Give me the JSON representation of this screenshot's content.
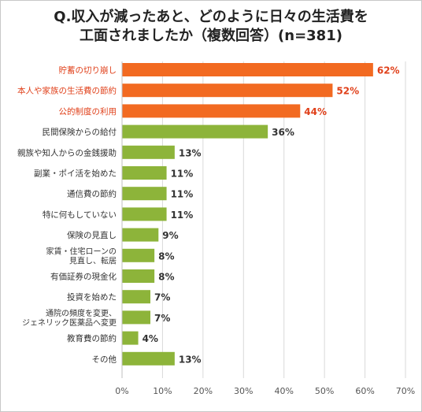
{
  "chart_data": {
    "type": "bar",
    "orientation": "horizontal",
    "title_line1": "Q.収入が減ったあと、どのように日々の生活費を",
    "title_line2": "工面されましたか（複数回答）(n=381)",
    "categories": [
      [
        "貯蓄の切り崩し"
      ],
      [
        "本人や家族の生活費の節約"
      ],
      [
        "公的制度の利用"
      ],
      [
        "民間保険からの給付"
      ],
      [
        "親族や知人からの金銭援助"
      ],
      [
        "副業・ポイ活を始めた"
      ],
      [
        "通信費の節約"
      ],
      [
        "特に何もしていない"
      ],
      [
        "保険の見直し"
      ],
      [
        "家賃・住宅ローンの",
        "見直し、転居"
      ],
      [
        "有価証券の現金化"
      ],
      [
        "投資を始めた"
      ],
      [
        "通院の頻度を変更、",
        "ジェネリック医薬品へ変更"
      ],
      [
        "教育費の節約"
      ],
      [
        "その他"
      ]
    ],
    "values": [
      62,
      52,
      44,
      36,
      13,
      11,
      11,
      11,
      9,
      8,
      8,
      7,
      7,
      4,
      13
    ],
    "value_labels": [
      "62%",
      "52%",
      "44%",
      "36%",
      "13%",
      "11%",
      "11%",
      "11%",
      "9%",
      "8%",
      "8%",
      "7%",
      "7%",
      "4%",
      "13%"
    ],
    "highlight_count": 3,
    "xlim": [
      0,
      70
    ],
    "xticks": [
      0,
      10,
      20,
      30,
      40,
      50,
      60,
      70
    ],
    "xtick_labels": [
      "0%",
      "10%",
      "20%",
      "30%",
      "40%",
      "50%",
      "60%",
      "70%"
    ],
    "grid": true,
    "colors": {
      "highlight": "#f26a21",
      "normal": "#8db43a",
      "highlight_text": "#e0401a",
      "text": "#333333",
      "grid": "#d9d9d9"
    }
  }
}
